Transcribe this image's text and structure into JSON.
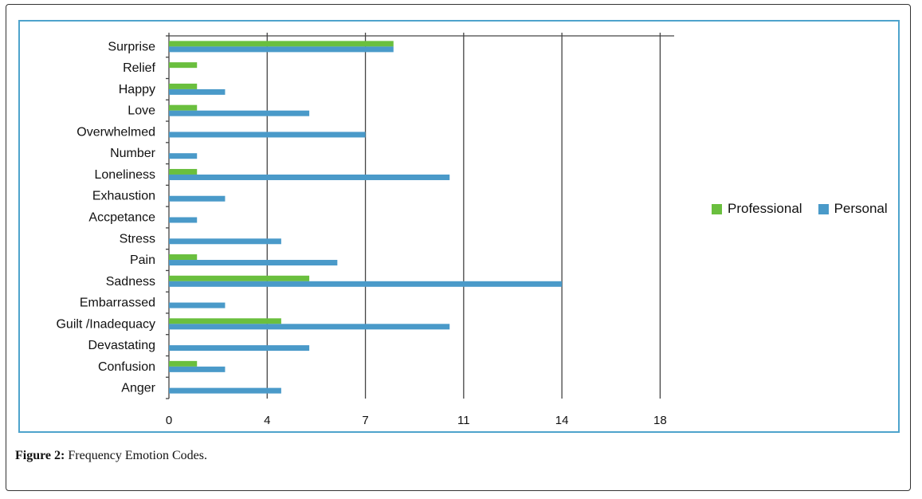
{
  "caption": {
    "label": "Figure 2:",
    "text": "Frequency Emotion Codes."
  },
  "chart_data": {
    "type": "bar",
    "orientation": "horizontal",
    "title": "",
    "xlabel": "",
    "ylabel": "",
    "xlim": [
      0,
      18
    ],
    "x_ticks": [
      0,
      3.5,
      7,
      10.5,
      14,
      17.5
    ],
    "x_tick_labels": [
      "0",
      "4",
      "7",
      "11",
      "14",
      "18"
    ],
    "grid": "vertical",
    "legend_position": "right",
    "categories": [
      "Surprise",
      "Relief",
      "Happy",
      "Love",
      "Overwhelmed",
      "Number",
      "Loneliness",
      "Exhaustion",
      "Accpetance",
      "Stress",
      "Pain",
      "Sadness",
      "Embarrassed",
      "Guilt /Inadequacy",
      "Devastating",
      "Confusion",
      "Anger"
    ],
    "series": [
      {
        "name": "Professional",
        "color": "#6abf3e",
        "values": [
          8,
          1,
          1,
          1,
          0,
          0,
          1,
          0,
          0,
          0,
          1,
          5,
          0,
          4,
          0,
          1,
          0
        ]
      },
      {
        "name": "Personal",
        "color": "#4a9ac9",
        "values": [
          8,
          0,
          2,
          5,
          7,
          1,
          10,
          2,
          1,
          4,
          6,
          14,
          2,
          10,
          5,
          2,
          4
        ]
      }
    ]
  }
}
